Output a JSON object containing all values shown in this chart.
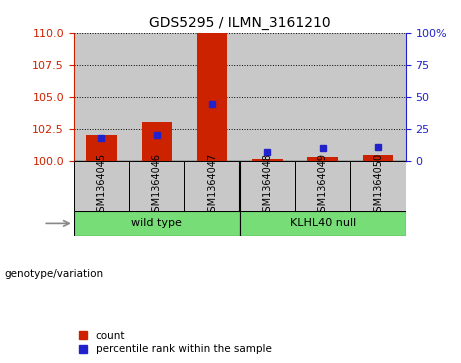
{
  "title": "GDS5295 / ILMN_3161210",
  "samples": [
    "GSM1364045",
    "GSM1364046",
    "GSM1364047",
    "GSM1364048",
    "GSM1364049",
    "GSM1364050"
  ],
  "count_values": [
    102.0,
    103.0,
    110.0,
    100.15,
    100.25,
    100.45
  ],
  "percentile_values": [
    18,
    20,
    44,
    7,
    10,
    11
  ],
  "ylim_left": [
    100,
    110
  ],
  "ylim_right": [
    0,
    100
  ],
  "yticks_left": [
    100,
    102.5,
    105,
    107.5,
    110
  ],
  "yticks_right": [
    0,
    25,
    50,
    75,
    100
  ],
  "bar_color": "#CC2200",
  "dot_color": "#2222CC",
  "cell_bg": "#C8C8C8",
  "wt_label": "wild type",
  "kl_label": "KLHL40 null",
  "group_bg_color": "#77DD77",
  "genotype_label": "genotype/variation",
  "label_count": "count",
  "label_percentile": "percentile rank within the sample",
  "wt_group": [
    0,
    1,
    2
  ],
  "kl_group": [
    3,
    4,
    5
  ]
}
